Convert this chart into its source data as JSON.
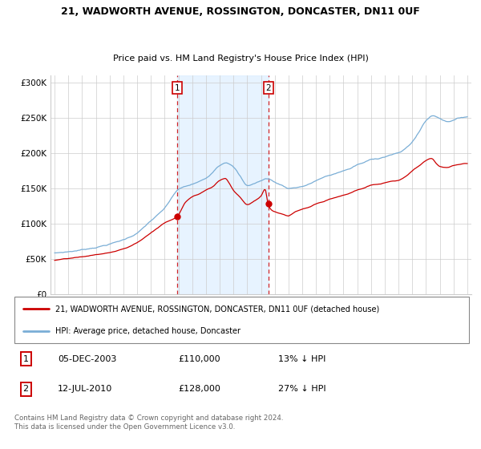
{
  "title": "21, WADWORTH AVENUE, ROSSINGTON, DONCASTER, DN11 0UF",
  "subtitle": "Price paid vs. HM Land Registry's House Price Index (HPI)",
  "ylabel_ticks": [
    "£0",
    "£50K",
    "£100K",
    "£150K",
    "£200K",
    "£250K",
    "£300K"
  ],
  "ytick_values": [
    0,
    50000,
    100000,
    150000,
    200000,
    250000,
    300000
  ],
  "ylim": [
    0,
    310000
  ],
  "legend_line1": "21, WADWORTH AVENUE, ROSSINGTON, DONCASTER, DN11 0UF (detached house)",
  "legend_line2": "HPI: Average price, detached house, Doncaster",
  "sale1_date": "05-DEC-2003",
  "sale1_price": 110000,
  "sale1_label": "13% ↓ HPI",
  "sale1_x": 2003.92,
  "sale2_date": "12-JUL-2010",
  "sale2_price": 128000,
  "sale2_label": "27% ↓ HPI",
  "sale2_x": 2010.53,
  "footer": "Contains HM Land Registry data © Crown copyright and database right 2024.\nThis data is licensed under the Open Government Licence v3.0.",
  "red_color": "#cc0000",
  "blue_color": "#7aaed6",
  "bg_shade_color": "#ddeeff",
  "vline_color": "#cc0000",
  "xlim_left": 1994.7,
  "xlim_right": 2025.3
}
